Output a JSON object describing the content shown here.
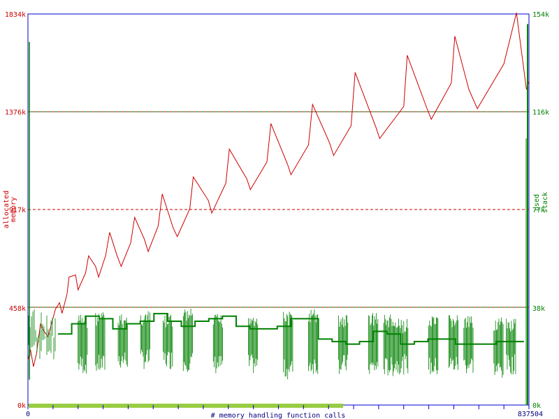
{
  "chart_data": {
    "type": "line",
    "xlabel": "# memory handling function calls",
    "x_range": [
      0,
      837504
    ],
    "x_ticks": [
      "0",
      "837504"
    ],
    "y_left": {
      "label_lines": [
        "allocated",
        "memory"
      ],
      "range_k": [
        0,
        1834
      ],
      "ticks": [
        "0k",
        "458k",
        "917k",
        "1376k",
        "1834k"
      ],
      "color": "#cc0000"
    },
    "y_right": {
      "label_lines": [
        "used",
        "stack"
      ],
      "range_k": [
        0,
        154
      ],
      "ticks": [
        "0k",
        "38k",
        "77k",
        "116k",
        "154k"
      ],
      "color": "#008000"
    },
    "grid": true,
    "series": [
      {
        "axis": "left",
        "color": "#cc0000",
        "x_frac": [
          0.0,
          0.005,
          0.011,
          0.017,
          0.025,
          0.031,
          0.04,
          0.048,
          0.055,
          0.063,
          0.068,
          0.078,
          0.082,
          0.095,
          0.1,
          0.115,
          0.121,
          0.135,
          0.141,
          0.155,
          0.163,
          0.178,
          0.186,
          0.205,
          0.213,
          0.232,
          0.24,
          0.26,
          0.268,
          0.29,
          0.298,
          0.323,
          0.33,
          0.36,
          0.367,
          0.395,
          0.402,
          0.437,
          0.444,
          0.477,
          0.485,
          0.518,
          0.525,
          0.56,
          0.568,
          0.602,
          0.61,
          0.645,
          0.653,
          0.695,
          0.702,
          0.75,
          0.757,
          0.795,
          0.805,
          0.845,
          0.852,
          0.88,
          0.897,
          0.95,
          0.975,
          0.995,
          1.0
        ],
        "y_k": [
          210,
          260,
          180,
          240,
          380,
          350,
          320,
          390,
          450,
          480,
          430,
          520,
          600,
          610,
          540,
          620,
          700,
          650,
          600,
          700,
          810,
          700,
          650,
          760,
          880,
          780,
          720,
          840,
          990,
          830,
          790,
          920,
          1070,
          960,
          900,
          1040,
          1200,
          1060,
          1010,
          1140,
          1320,
          1130,
          1080,
          1220,
          1410,
          1230,
          1170,
          1310,
          1560,
          1300,
          1250,
          1400,
          1640,
          1400,
          1340,
          1510,
          1730,
          1480,
          1390,
          1600,
          1840,
          1480,
          1520
        ]
      },
      {
        "axis": "right",
        "color": "#008000",
        "base_k": [
          28,
          32,
          35,
          34,
          30,
          32,
          33,
          36,
          33,
          31,
          33,
          34,
          35,
          31,
          30,
          30,
          31,
          34,
          34,
          26,
          25,
          24,
          25,
          29,
          28,
          24,
          25,
          26,
          26,
          24,
          24,
          24,
          25,
          25
        ],
        "bursts": [
          {
            "start": 0.1,
            "end": 0.12,
            "top_k": 36,
            "bottom_k": 12
          },
          {
            "start": 0.135,
            "end": 0.155,
            "top_k": 37,
            "bottom_k": 12
          },
          {
            "start": 0.18,
            "end": 0.2,
            "top_k": 36,
            "bottom_k": 14
          },
          {
            "start": 0.225,
            "end": 0.245,
            "top_k": 37,
            "bottom_k": 14
          },
          {
            "start": 0.27,
            "end": 0.29,
            "top_k": 36,
            "bottom_k": 14
          },
          {
            "start": 0.31,
            "end": 0.33,
            "top_k": 38,
            "bottom_k": 13
          },
          {
            "start": 0.37,
            "end": 0.39,
            "top_k": 36,
            "bottom_k": 12
          },
          {
            "start": 0.44,
            "end": 0.46,
            "top_k": 37,
            "bottom_k": 12
          },
          {
            "start": 0.51,
            "end": 0.53,
            "top_k": 37,
            "bottom_k": 10
          },
          {
            "start": 0.56,
            "end": 0.58,
            "top_k": 38,
            "bottom_k": 12
          },
          {
            "start": 0.62,
            "end": 0.64,
            "top_k": 36,
            "bottom_k": 12
          },
          {
            "start": 0.68,
            "end": 0.7,
            "top_k": 37,
            "bottom_k": 11
          },
          {
            "start": 0.71,
            "end": 0.73,
            "top_k": 36,
            "bottom_k": 11
          },
          {
            "start": 0.73,
            "end": 0.76,
            "top_k": 34,
            "bottom_k": 12
          },
          {
            "start": 0.8,
            "end": 0.82,
            "top_k": 35,
            "bottom_k": 11
          },
          {
            "start": 0.84,
            "end": 0.86,
            "top_k": 36,
            "bottom_k": 12
          },
          {
            "start": 0.87,
            "end": 0.89,
            "top_k": 35,
            "bottom_k": 12
          },
          {
            "start": 0.93,
            "end": 0.95,
            "top_k": 35,
            "bottom_k": 10
          },
          {
            "start": 0.955,
            "end": 0.975,
            "top_k": 34,
            "bottom_k": 12
          }
        ]
      }
    ]
  },
  "colors": {
    "frame": "#0000cc",
    "grid_red": "#cc0000",
    "grid_green": "#008000",
    "progress_fill": "#99cc44"
  }
}
